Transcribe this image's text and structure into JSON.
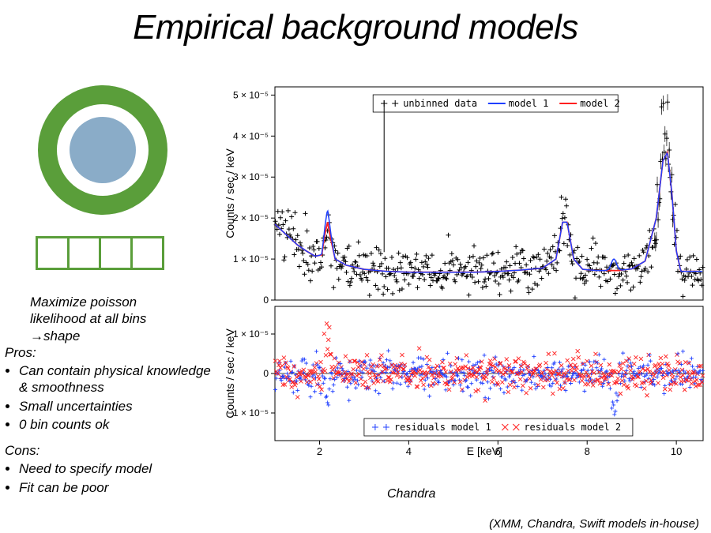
{
  "title": "Empirical background models",
  "diagram": {
    "outer_ring_color": "#5a9e3a",
    "inner_circle_color": "#8aacc8",
    "outer_r": 82,
    "ring_inner_r": 58,
    "inner_r": 42
  },
  "text": {
    "intro1": "Maximize poisson",
    "intro2": "likelihood at all bins",
    "intro3": "→shape",
    "pros_title": "Pros:",
    "pros": [
      "Can contain physical knowledge & smoothness",
      "Small uncertainties",
      "0 bin counts ok"
    ],
    "cons_title": "Cons:",
    "cons": [
      "Need to specify model",
      "Fit can be poor"
    ]
  },
  "caption_center": "Chandra",
  "caption_right": "(XMM, Chandra, Swift models in-house)",
  "main_chart": {
    "type": "scatter+line",
    "x_range": [
      1,
      10.6
    ],
    "y_range": [
      0,
      5.2e-05
    ],
    "x_ticks": [
      2,
      4,
      6,
      8,
      10
    ],
    "y_ticks_vals": [
      0,
      1e-05,
      2e-05,
      3e-05,
      4e-05,
      5e-05
    ],
    "y_ticks_labels": [
      "0",
      "1 × 10⁻⁵",
      "2 × 10⁻⁵",
      "3 × 10⁻⁵",
      "4 × 10⁻⁵",
      "5 × 10⁻⁵"
    ],
    "ylabel": "Counts / sec / keV",
    "xlabel": "E [keV]",
    "legend": [
      {
        "label": "unbinned data",
        "marker": "+",
        "color": "#000000"
      },
      {
        "label": "model 1",
        "marker": "line",
        "color": "#1f3fff"
      },
      {
        "label": "model 2",
        "marker": "line",
        "color": "#ff1f1f"
      }
    ],
    "data_color": "#000000",
    "model1_color": "#1f3fff",
    "model2_color": "#ff1f1f"
  },
  "residual_chart": {
    "y_range": [
      -1.7e-05,
      1.7e-05
    ],
    "y_ticks_vals": [
      -1e-05,
      0,
      1e-05
    ],
    "y_ticks_labels": [
      "−1 × 10⁻⁵",
      "0",
      "1 × 10⁻⁵"
    ],
    "ylabel": "Counts / sec / keV",
    "legend": [
      {
        "label": "residuals model 1",
        "marker": "+",
        "color": "#1f3fff"
      },
      {
        "label": "residuals model 2",
        "marker": "x",
        "color": "#ff1f1f"
      }
    ]
  },
  "model_curve_pts": [
    [
      1.0,
      1.85e-05
    ],
    [
      1.15,
      1.7e-05
    ],
    [
      1.3,
      1.55e-05
    ],
    [
      1.5,
      1.35e-05
    ],
    [
      1.7,
      1.2e-05
    ],
    [
      1.9,
      1.07e-05
    ],
    [
      2.05,
      1.1e-05
    ],
    [
      2.12,
      1.6e-05
    ],
    [
      2.18,
      1.9e-05
    ],
    [
      2.25,
      1.5e-05
    ],
    [
      2.35,
      1e-05
    ],
    [
      2.6,
      8.5e-06
    ],
    [
      3.0,
      7.5e-06
    ],
    [
      3.5,
      7e-06
    ],
    [
      4.0,
      6.8e-06
    ],
    [
      4.5,
      6.8e-06
    ],
    [
      5.0,
      6.8e-06
    ],
    [
      5.5,
      6.8e-06
    ],
    [
      6.0,
      7e-06
    ],
    [
      6.5,
      7.3e-06
    ],
    [
      7.0,
      7.8e-06
    ],
    [
      7.3,
      1e-05
    ],
    [
      7.45,
      1.9e-05
    ],
    [
      7.55,
      1.9e-05
    ],
    [
      7.7,
      1e-05
    ],
    [
      7.9,
      7.5e-06
    ],
    [
      8.2,
      7.2e-06
    ],
    [
      8.5,
      7.2e-06
    ],
    [
      8.7,
      7.2e-06
    ],
    [
      9.0,
      7.6e-06
    ],
    [
      9.3,
      9.5e-06
    ],
    [
      9.55,
      2e-05
    ],
    [
      9.7,
      3.4e-05
    ],
    [
      9.8,
      3.6e-05
    ],
    [
      9.9,
      2.6e-05
    ],
    [
      10.0,
      1.2e-05
    ],
    [
      10.1,
      7e-06
    ],
    [
      10.3,
      7e-06
    ],
    [
      10.5,
      7e-06
    ]
  ],
  "model1_extra_peaks": [
    {
      "x": 2.18,
      "h": 2.2e-05
    },
    {
      "x": 8.6,
      "h": 1e-05
    }
  ]
}
